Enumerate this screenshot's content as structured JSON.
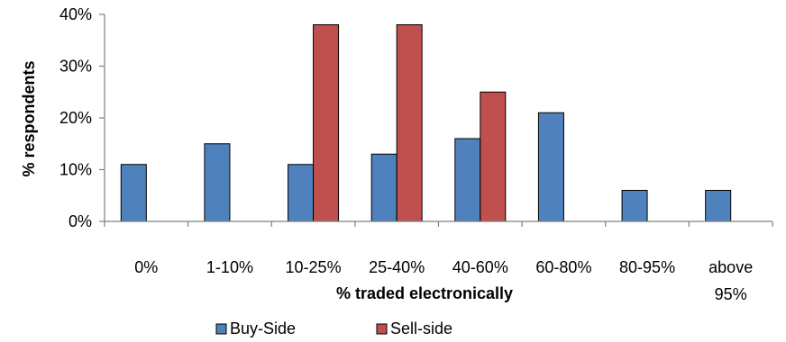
{
  "chart_data": {
    "type": "bar",
    "categories": [
      "0%",
      "1-10%",
      "10-25%",
      "25-40%",
      "40-60%",
      "60-80%",
      "80-95%",
      "above 95%"
    ],
    "series": [
      {
        "name": "Buy-Side",
        "values": [
          11,
          15,
          11,
          13,
          16,
          21,
          6,
          6
        ],
        "color": "#4F81BD"
      },
      {
        "name": "Sell-side",
        "values": [
          null,
          null,
          38,
          38,
          25,
          null,
          null,
          null
        ],
        "color": "#C0504D"
      }
    ],
    "xlabel": "% traded electronically",
    "ylabel": "% respondents",
    "ylim": [
      0,
      40
    ],
    "yticks": [
      "0%",
      "10%",
      "20%",
      "30%",
      "40%"
    ],
    "grid": false,
    "legend_position": "bottom"
  }
}
